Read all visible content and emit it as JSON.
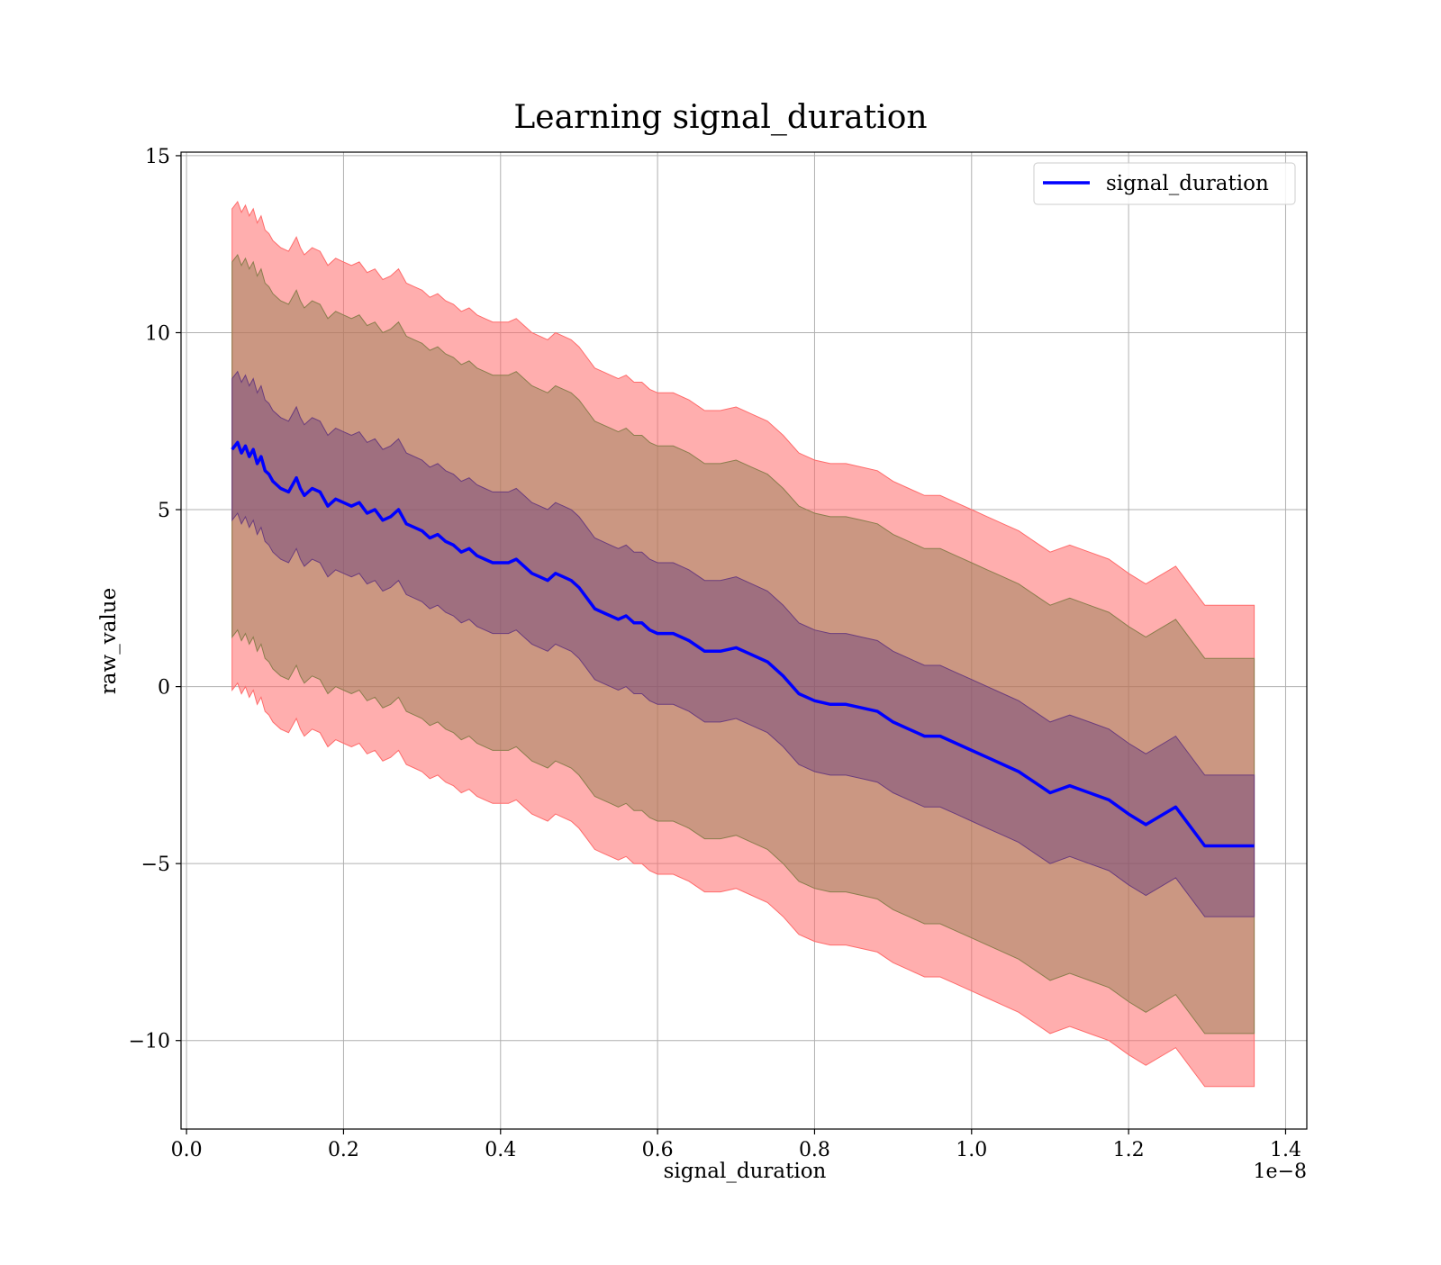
{
  "chart_data": {
    "type": "area",
    "title": "Learning signal_duration",
    "xlabel": "signal_duration",
    "ylabel": "raw_value",
    "x_offset_label": "1e−8",
    "xlim": [
      -0.007,
      1.427
    ],
    "ylim": [
      -12.5,
      15.1
    ],
    "x_ticks": [
      0.0,
      0.2,
      0.4,
      0.6,
      0.8,
      1.0,
      1.2,
      1.4
    ],
    "x_tick_labels": [
      "0.0",
      "0.2",
      "0.4",
      "0.6",
      "0.8",
      "1.0",
      "1.2",
      "1.4"
    ],
    "y_ticks": [
      -10,
      -5,
      0,
      5,
      10,
      15
    ],
    "y_tick_labels": [
      "−10",
      "−5",
      "0",
      "5",
      "10",
      "15"
    ],
    "grid": true,
    "legend": {
      "position": "top-right",
      "entries": [
        "signal_duration"
      ]
    },
    "colors": {
      "line": "#0000ff",
      "band_outer": "#ff6b6b",
      "band_middle": "#8b7d4d",
      "band_inner": "#6b3d7d"
    },
    "series": [
      {
        "name": "signal_duration",
        "x": [
          0.058,
          0.065,
          0.07,
          0.075,
          0.08,
          0.085,
          0.09,
          0.095,
          0.1,
          0.105,
          0.11,
          0.12,
          0.13,
          0.14,
          0.145,
          0.15,
          0.16,
          0.17,
          0.18,
          0.19,
          0.2,
          0.21,
          0.22,
          0.23,
          0.24,
          0.25,
          0.26,
          0.27,
          0.28,
          0.29,
          0.3,
          0.31,
          0.32,
          0.33,
          0.34,
          0.35,
          0.36,
          0.37,
          0.38,
          0.39,
          0.4,
          0.41,
          0.42,
          0.43,
          0.44,
          0.45,
          0.46,
          0.47,
          0.48,
          0.49,
          0.5,
          0.51,
          0.52,
          0.53,
          0.54,
          0.55,
          0.56,
          0.57,
          0.58,
          0.59,
          0.6,
          0.62,
          0.64,
          0.66,
          0.68,
          0.7,
          0.72,
          0.74,
          0.76,
          0.78,
          0.8,
          0.82,
          0.84,
          0.86,
          0.88,
          0.9,
          0.92,
          0.94,
          0.96,
          0.98,
          1.0,
          1.02,
          1.04,
          1.06,
          1.08,
          1.1,
          1.125,
          1.15,
          1.175,
          1.2,
          1.222,
          1.26,
          1.297,
          1.36
        ],
        "mean": [
          6.7,
          6.9,
          6.6,
          6.8,
          6.5,
          6.7,
          6.3,
          6.5,
          6.1,
          6.0,
          5.8,
          5.6,
          5.5,
          5.9,
          5.6,
          5.4,
          5.6,
          5.5,
          5.1,
          5.3,
          5.2,
          5.1,
          5.2,
          4.9,
          5.0,
          4.7,
          4.8,
          5.0,
          4.6,
          4.5,
          4.4,
          4.2,
          4.3,
          4.1,
          4.0,
          3.8,
          3.9,
          3.7,
          3.6,
          3.5,
          3.5,
          3.5,
          3.6,
          3.4,
          3.2,
          3.1,
          3.0,
          3.2,
          3.1,
          3.0,
          2.8,
          2.5,
          2.2,
          2.1,
          2.0,
          1.9,
          2.0,
          1.8,
          1.8,
          1.6,
          1.5,
          1.5,
          1.3,
          1.0,
          1.0,
          1.1,
          0.9,
          0.7,
          0.3,
          -0.2,
          -0.4,
          -0.5,
          -0.5,
          -0.6,
          -0.7,
          -1.0,
          -1.2,
          -1.4,
          -1.4,
          -1.6,
          -1.8,
          -2.0,
          -2.2,
          -2.4,
          -2.7,
          -3.0,
          -2.8,
          -3.0,
          -3.2,
          -3.6,
          -3.9,
          -3.4,
          -4.5,
          -4.5
        ],
        "band_inner_lower": [
          4.7,
          4.9,
          4.6,
          4.8,
          4.5,
          4.7,
          4.3,
          4.5,
          4.1,
          4.0,
          3.8,
          3.6,
          3.5,
          3.9,
          3.6,
          3.4,
          3.6,
          3.5,
          3.1,
          3.3,
          3.2,
          3.1,
          3.2,
          2.9,
          3.0,
          2.7,
          2.8,
          3.0,
          2.6,
          2.5,
          2.4,
          2.2,
          2.3,
          2.1,
          2.0,
          1.8,
          1.9,
          1.7,
          1.6,
          1.5,
          1.5,
          1.5,
          1.6,
          1.4,
          1.2,
          1.1,
          1.0,
          1.2,
          1.1,
          1.0,
          0.8,
          0.5,
          0.2,
          0.1,
          0.0,
          -0.1,
          0.0,
          -0.2,
          -0.2,
          -0.4,
          -0.5,
          -0.5,
          -0.7,
          -1.0,
          -1.0,
          -0.9,
          -1.1,
          -1.3,
          -1.7,
          -2.2,
          -2.4,
          -2.5,
          -2.5,
          -2.6,
          -2.7,
          -3.0,
          -3.2,
          -3.4,
          -3.4,
          -3.6,
          -3.8,
          -4.0,
          -4.2,
          -4.4,
          -4.7,
          -5.0,
          -4.8,
          -5.0,
          -5.2,
          -5.6,
          -5.9,
          -5.4,
          -6.5,
          -6.5
        ],
        "band_inner_upper": [
          8.7,
          8.9,
          8.6,
          8.8,
          8.5,
          8.7,
          8.3,
          8.5,
          8.1,
          8.0,
          7.8,
          7.6,
          7.5,
          7.9,
          7.6,
          7.4,
          7.6,
          7.5,
          7.1,
          7.3,
          7.2,
          7.1,
          7.2,
          6.9,
          7.0,
          6.7,
          6.8,
          7.0,
          6.6,
          6.5,
          6.4,
          6.2,
          6.3,
          6.1,
          6.0,
          5.8,
          5.9,
          5.7,
          5.6,
          5.5,
          5.5,
          5.5,
          5.6,
          5.4,
          5.2,
          5.1,
          5.0,
          5.2,
          5.1,
          5.0,
          4.8,
          4.5,
          4.2,
          4.1,
          4.0,
          3.9,
          4.0,
          3.8,
          3.8,
          3.6,
          3.5,
          3.5,
          3.3,
          3.0,
          3.0,
          3.1,
          2.9,
          2.7,
          2.3,
          1.8,
          1.6,
          1.5,
          1.5,
          1.4,
          1.3,
          1.0,
          0.8,
          0.6,
          0.6,
          0.4,
          0.2,
          0.0,
          -0.2,
          -0.4,
          -0.7,
          -1.0,
          -0.8,
          -1.0,
          -1.2,
          -1.6,
          -1.9,
          -1.4,
          -2.5,
          -2.5
        ],
        "band_middle_lower": [
          1.4,
          1.6,
          1.3,
          1.5,
          1.2,
          1.4,
          1.0,
          1.2,
          0.8,
          0.7,
          0.5,
          0.3,
          0.2,
          0.6,
          0.3,
          0.1,
          0.3,
          0.2,
          -0.2,
          0.0,
          -0.1,
          -0.2,
          -0.1,
          -0.4,
          -0.3,
          -0.6,
          -0.5,
          -0.3,
          -0.7,
          -0.8,
          -0.9,
          -1.1,
          -1.0,
          -1.2,
          -1.3,
          -1.5,
          -1.4,
          -1.6,
          -1.7,
          -1.8,
          -1.8,
          -1.8,
          -1.7,
          -1.9,
          -2.1,
          -2.2,
          -2.3,
          -2.1,
          -2.2,
          -2.3,
          -2.5,
          -2.8,
          -3.1,
          -3.2,
          -3.3,
          -3.4,
          -3.3,
          -3.5,
          -3.5,
          -3.7,
          -3.8,
          -3.8,
          -4.0,
          -4.3,
          -4.3,
          -4.2,
          -4.4,
          -4.6,
          -5.0,
          -5.5,
          -5.7,
          -5.8,
          -5.8,
          -5.9,
          -6.0,
          -6.3,
          -6.5,
          -6.7,
          -6.7,
          -6.9,
          -7.1,
          -7.3,
          -7.5,
          -7.7,
          -8.0,
          -8.3,
          -8.1,
          -8.3,
          -8.5,
          -8.9,
          -9.2,
          -8.7,
          -9.8,
          -9.8
        ],
        "band_middle_upper": [
          12.0,
          12.2,
          11.9,
          12.1,
          11.8,
          12.0,
          11.6,
          11.8,
          11.4,
          11.3,
          11.1,
          10.9,
          10.8,
          11.2,
          10.9,
          10.7,
          10.9,
          10.8,
          10.4,
          10.6,
          10.5,
          10.4,
          10.5,
          10.2,
          10.3,
          10.0,
          10.1,
          10.3,
          9.9,
          9.8,
          9.7,
          9.5,
          9.6,
          9.4,
          9.3,
          9.1,
          9.2,
          9.0,
          8.9,
          8.8,
          8.8,
          8.8,
          8.9,
          8.7,
          8.5,
          8.4,
          8.3,
          8.5,
          8.4,
          8.3,
          8.1,
          7.8,
          7.5,
          7.4,
          7.3,
          7.2,
          7.3,
          7.1,
          7.1,
          6.9,
          6.8,
          6.8,
          6.6,
          6.3,
          6.3,
          6.4,
          6.2,
          6.0,
          5.6,
          5.1,
          4.9,
          4.8,
          4.8,
          4.7,
          4.6,
          4.3,
          4.1,
          3.9,
          3.9,
          3.7,
          3.5,
          3.3,
          3.1,
          2.9,
          2.6,
          2.3,
          2.5,
          2.3,
          2.1,
          1.7,
          1.4,
          1.9,
          0.8,
          0.8
        ],
        "band_outer_lower": [
          -0.1,
          0.1,
          -0.2,
          0.0,
          -0.3,
          -0.1,
          -0.5,
          -0.3,
          -0.7,
          -0.8,
          -1.0,
          -1.2,
          -1.3,
          -0.9,
          -1.2,
          -1.4,
          -1.2,
          -1.3,
          -1.7,
          -1.5,
          -1.6,
          -1.7,
          -1.6,
          -1.9,
          -1.8,
          -2.1,
          -2.0,
          -1.8,
          -2.2,
          -2.3,
          -2.4,
          -2.6,
          -2.5,
          -2.7,
          -2.8,
          -3.0,
          -2.9,
          -3.1,
          -3.2,
          -3.3,
          -3.3,
          -3.3,
          -3.2,
          -3.4,
          -3.6,
          -3.7,
          -3.8,
          -3.6,
          -3.7,
          -3.8,
          -4.0,
          -4.3,
          -4.6,
          -4.7,
          -4.8,
          -4.9,
          -4.8,
          -5.0,
          -5.0,
          -5.2,
          -5.3,
          -5.3,
          -5.5,
          -5.8,
          -5.8,
          -5.7,
          -5.9,
          -6.1,
          -6.5,
          -7.0,
          -7.2,
          -7.3,
          -7.3,
          -7.4,
          -7.5,
          -7.8,
          -8.0,
          -8.2,
          -8.2,
          -8.4,
          -8.6,
          -8.8,
          -9.0,
          -9.2,
          -9.5,
          -9.8,
          -9.6,
          -9.8,
          -10.0,
          -10.4,
          -10.7,
          -10.2,
          -11.3,
          -11.3
        ],
        "band_outer_upper": [
          13.5,
          13.7,
          13.4,
          13.6,
          13.3,
          13.5,
          13.1,
          13.3,
          12.9,
          12.8,
          12.6,
          12.4,
          12.3,
          12.7,
          12.4,
          12.2,
          12.4,
          12.3,
          11.9,
          12.1,
          12.0,
          11.9,
          12.0,
          11.7,
          11.8,
          11.5,
          11.6,
          11.8,
          11.4,
          11.3,
          11.2,
          11.0,
          11.1,
          10.9,
          10.8,
          10.6,
          10.7,
          10.5,
          10.4,
          10.3,
          10.3,
          10.3,
          10.4,
          10.2,
          10.0,
          9.9,
          9.8,
          10.0,
          9.9,
          9.8,
          9.6,
          9.3,
          9.0,
          8.9,
          8.8,
          8.7,
          8.8,
          8.6,
          8.6,
          8.4,
          8.3,
          8.3,
          8.1,
          7.8,
          7.8,
          7.9,
          7.7,
          7.5,
          7.1,
          6.6,
          6.4,
          6.3,
          6.3,
          6.2,
          6.1,
          5.8,
          5.6,
          5.4,
          5.4,
          5.2,
          5.0,
          4.8,
          4.6,
          4.4,
          4.1,
          3.8,
          4.0,
          3.8,
          3.6,
          3.2,
          2.9,
          3.4,
          2.3,
          2.3
        ]
      }
    ]
  }
}
